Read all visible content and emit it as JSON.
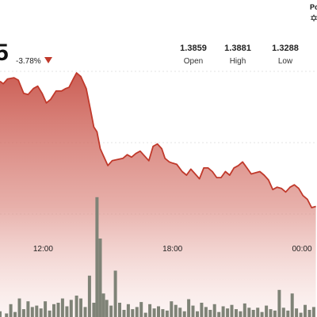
{
  "ticker": {
    "price_partial": "5",
    "change_pct": "-3.78%",
    "direction": "down"
  },
  "stats": {
    "open": {
      "value": "1.3859",
      "label": "Open"
    },
    "high": {
      "value": "1.3881",
      "label": "High"
    },
    "low": {
      "value": "1.3288",
      "label": "Low"
    }
  },
  "branding": {
    "powered_partial": "Po",
    "icon": "brand-logo-icon"
  },
  "colors": {
    "line": "#c0392b",
    "area_top": "#c9564c",
    "volume": "#7f8377",
    "down_arrow": "#c0392b"
  },
  "chart_data": {
    "type": "area",
    "title": "",
    "xlabel": "",
    "ylabel": "",
    "xtick_labels": [
      "12:00",
      "18:00",
      "00:00"
    ],
    "xtick_positions": [
      3,
      9,
      15
    ],
    "x_range": [
      1,
      15.7
    ],
    "ylim": [
      1.318,
      1.394
    ],
    "grid": true,
    "price": {
      "x": [
        1.0,
        1.15,
        1.35,
        1.65,
        1.85,
        2.1,
        2.3,
        2.55,
        2.75,
        2.95,
        3.15,
        3.35,
        3.6,
        3.85,
        4.05,
        4.2,
        4.4,
        4.55,
        4.75,
        5.0,
        5.2,
        5.35,
        5.5,
        5.65,
        5.8,
        6.0,
        6.2,
        6.45,
        6.7,
        6.9,
        7.1,
        7.3,
        7.5,
        7.7,
        7.9,
        8.1,
        8.3,
        8.5,
        8.65,
        8.85,
        9.0,
        9.2,
        9.45,
        9.65,
        9.85,
        10.05,
        10.25,
        10.45,
        10.65,
        10.85,
        11.05,
        11.25,
        11.45,
        11.65,
        11.85,
        12.05,
        12.25,
        12.45,
        12.65,
        12.85,
        13.05,
        13.25,
        13.45,
        13.65,
        13.85,
        14.05,
        14.25,
        14.45,
        14.65,
        14.85,
        15.05,
        15.25,
        15.45,
        15.65
      ],
      "y": [
        1.383,
        1.382,
        1.384,
        1.3845,
        1.3835,
        1.378,
        1.3775,
        1.38,
        1.381,
        1.378,
        1.374,
        1.3755,
        1.379,
        1.379,
        1.38,
        1.3805,
        1.384,
        1.3865,
        1.385,
        1.38,
        1.371,
        1.364,
        1.362,
        1.355,
        1.352,
        1.348,
        1.35,
        1.3505,
        1.351,
        1.3525,
        1.3515,
        1.353,
        1.354,
        1.352,
        1.35,
        1.356,
        1.357,
        1.355,
        1.351,
        1.3495,
        1.349,
        1.3485,
        1.3455,
        1.344,
        1.3465,
        1.3445,
        1.3425,
        1.347,
        1.347,
        1.3455,
        1.343,
        1.343,
        1.3455,
        1.344,
        1.347,
        1.348,
        1.3495,
        1.347,
        1.3445,
        1.345,
        1.3455,
        1.344,
        1.342,
        1.338,
        1.339,
        1.3385,
        1.337,
        1.339,
        1.34,
        1.3385,
        1.3355,
        1.334,
        1.3305,
        1.331
      ]
    },
    "volume": {
      "x": [
        1.0,
        1.3,
        1.5,
        1.7,
        1.9,
        2.1,
        2.3,
        2.5,
        2.7,
        2.9,
        3.1,
        3.3,
        3.5,
        3.7,
        3.9,
        4.1,
        4.3,
        4.55,
        4.75,
        4.95,
        5.15,
        5.35,
        5.5,
        5.65,
        5.8,
        5.95,
        6.15,
        6.35,
        6.55,
        6.75,
        6.95,
        7.15,
        7.35,
        7.55,
        7.75,
        7.95,
        8.15,
        8.35,
        8.55,
        8.75,
        8.95,
        9.15,
        9.35,
        9.55,
        9.75,
        9.95,
        10.15,
        10.35,
        10.55,
        10.75,
        10.95,
        11.15,
        11.35,
        11.55,
        11.75,
        11.95,
        12.15,
        12.35,
        12.55,
        12.75,
        12.95,
        13.15,
        13.35,
        13.55,
        13.75,
        13.95,
        14.15,
        14.35,
        14.55,
        14.75,
        14.95,
        15.15,
        15.35,
        15.55
      ],
      "v": [
        8,
        5,
        18,
        7,
        26,
        11,
        22,
        14,
        16,
        12,
        22,
        9,
        18,
        20,
        26,
        15,
        24,
        30,
        26,
        14,
        58,
        20,
        168,
        110,
        33,
        24,
        16,
        65,
        20,
        10,
        18,
        11,
        14,
        21,
        6,
        18,
        12,
        15,
        11,
        9,
        22,
        17,
        13,
        8,
        25,
        16,
        8,
        20,
        14,
        10,
        18,
        7,
        15,
        12,
        17,
        11,
        8,
        19,
        13,
        10,
        13,
        7,
        16,
        11,
        9,
        38,
        13,
        9,
        33,
        12,
        6,
        17,
        10,
        14
      ],
      "max": 200
    }
  }
}
